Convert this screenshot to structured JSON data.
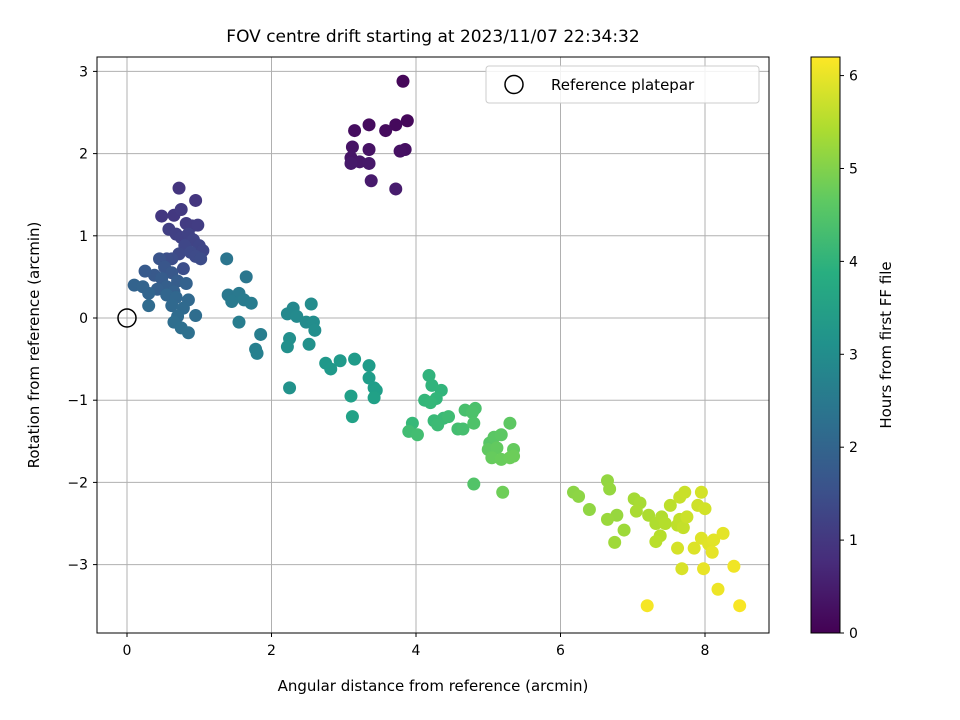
{
  "chart_data": {
    "type": "scatter",
    "title": "FOV centre drift starting at 2023/11/07 22:34:32",
    "xlabel": "Angular distance from reference (arcmin)",
    "ylabel": "Rotation from reference (arcmin)",
    "xlim": [
      -0.4,
      8.9
    ],
    "ylim": [
      -3.8,
      3.2
    ],
    "xticks": [
      0,
      2,
      4,
      6,
      8
    ],
    "yticks": [
      -3,
      -2,
      -1,
      0,
      1,
      2,
      3
    ],
    "grid": true,
    "legend": {
      "position": "top-right",
      "entries": [
        "Reference platepar"
      ]
    },
    "reference_point": {
      "x": 0,
      "y": 0,
      "label": "Reference platepar"
    },
    "colorbar": {
      "label": "Hours from first FF file",
      "range": [
        0,
        6.2
      ],
      "ticks": [
        0,
        1,
        2,
        3,
        4,
        5,
        6
      ],
      "colormap": "viridis"
    },
    "points": [
      [
        3.82,
        2.88,
        0.1
      ],
      [
        3.88,
        2.4,
        0.12
      ],
      [
        3.72,
        2.35,
        0.15
      ],
      [
        3.58,
        2.28,
        0.18
      ],
      [
        3.35,
        2.35,
        0.2
      ],
      [
        3.15,
        2.28,
        0.22
      ],
      [
        3.85,
        2.05,
        0.25
      ],
      [
        3.78,
        2.03,
        0.28
      ],
      [
        3.35,
        2.05,
        0.3
      ],
      [
        3.12,
        2.08,
        0.32
      ],
      [
        3.1,
        1.95,
        0.35
      ],
      [
        3.22,
        1.9,
        0.38
      ],
      [
        3.35,
        1.88,
        0.4
      ],
      [
        3.1,
        1.88,
        0.42
      ],
      [
        3.38,
        1.67,
        0.45
      ],
      [
        3.72,
        1.57,
        0.48
      ],
      [
        0.72,
        1.58,
        0.95
      ],
      [
        0.95,
        1.43,
        0.98
      ],
      [
        0.48,
        1.24,
        1.0
      ],
      [
        0.65,
        1.25,
        1.02
      ],
      [
        0.75,
        1.32,
        1.05
      ],
      [
        0.82,
        1.15,
        1.08
      ],
      [
        0.9,
        1.12,
        1.1
      ],
      [
        0.98,
        1.13,
        1.12
      ],
      [
        0.58,
        1.08,
        1.15
      ],
      [
        0.68,
        1.02,
        1.18
      ],
      [
        0.75,
        0.98,
        1.2
      ],
      [
        0.85,
        1.02,
        1.22
      ],
      [
        0.92,
        0.95,
        1.25
      ],
      [
        1.0,
        0.88,
        1.28
      ],
      [
        1.05,
        0.82,
        1.3
      ],
      [
        0.8,
        0.88,
        1.32
      ],
      [
        0.72,
        0.78,
        1.35
      ],
      [
        0.88,
        0.8,
        1.38
      ],
      [
        0.95,
        0.75,
        1.4
      ],
      [
        1.02,
        0.72,
        1.42
      ],
      [
        0.62,
        0.72,
        1.45
      ],
      [
        0.78,
        0.6,
        1.48
      ],
      [
        0.55,
        0.72,
        1.5
      ],
      [
        0.45,
        0.72,
        1.6
      ],
      [
        0.52,
        0.62,
        1.65
      ],
      [
        0.62,
        0.55,
        1.7
      ],
      [
        0.38,
        0.52,
        1.72
      ],
      [
        0.25,
        0.57,
        1.75
      ],
      [
        0.48,
        0.48,
        1.8
      ],
      [
        0.7,
        0.45,
        1.82
      ],
      [
        0.55,
        0.38,
        1.85
      ],
      [
        0.42,
        0.35,
        1.88
      ],
      [
        0.65,
        0.32,
        1.9
      ],
      [
        0.82,
        0.42,
        1.92
      ],
      [
        0.1,
        0.4,
        1.95
      ],
      [
        0.22,
        0.38,
        1.97
      ],
      [
        0.3,
        0.3,
        2.0
      ],
      [
        0.55,
        0.28,
        2.02
      ],
      [
        0.68,
        0.25,
        2.05
      ],
      [
        0.85,
        0.22,
        2.08
      ],
      [
        0.62,
        0.15,
        2.1
      ],
      [
        0.78,
        0.12,
        2.12
      ],
      [
        0.3,
        0.15,
        2.15
      ],
      [
        0.7,
        0.02,
        2.18
      ],
      [
        0.95,
        0.03,
        2.2
      ],
      [
        0.65,
        -0.05,
        2.22
      ],
      [
        0.75,
        -0.12,
        2.25
      ],
      [
        0.85,
        -0.18,
        2.28
      ],
      [
        1.38,
        0.72,
        2.4
      ],
      [
        1.65,
        0.5,
        2.45
      ],
      [
        1.4,
        0.28,
        2.5
      ],
      [
        1.55,
        0.3,
        2.52
      ],
      [
        1.45,
        0.2,
        2.55
      ],
      [
        1.62,
        0.22,
        2.58
      ],
      [
        1.72,
        0.18,
        2.6
      ],
      [
        1.55,
        -0.05,
        2.62
      ],
      [
        1.85,
        -0.2,
        2.65
      ],
      [
        1.78,
        -0.38,
        2.68
      ],
      [
        1.8,
        -0.43,
        2.7
      ],
      [
        2.3,
        0.12,
        2.9
      ],
      [
        2.22,
        0.05,
        2.92
      ],
      [
        2.35,
        0.02,
        2.95
      ],
      [
        2.48,
        -0.05,
        2.97
      ],
      [
        2.55,
        0.17,
        3.0
      ],
      [
        2.58,
        -0.05,
        3.02
      ],
      [
        2.6,
        -0.15,
        3.05
      ],
      [
        2.25,
        -0.25,
        3.08
      ],
      [
        2.22,
        -0.35,
        3.1
      ],
      [
        2.52,
        -0.32,
        3.12
      ],
      [
        2.25,
        -0.85,
        3.15
      ],
      [
        2.75,
        -0.55,
        3.3
      ],
      [
        2.82,
        -0.62,
        3.32
      ],
      [
        2.95,
        -0.52,
        3.35
      ],
      [
        3.15,
        -0.5,
        3.38
      ],
      [
        3.35,
        -0.58,
        3.4
      ],
      [
        3.35,
        -0.73,
        3.42
      ],
      [
        3.42,
        -0.85,
        3.45
      ],
      [
        3.45,
        -0.88,
        3.48
      ],
      [
        3.1,
        -0.95,
        3.5
      ],
      [
        3.42,
        -0.97,
        3.52
      ],
      [
        3.12,
        -1.2,
        3.55
      ],
      [
        4.18,
        -0.7,
        4.0
      ],
      [
        4.22,
        -0.82,
        4.02
      ],
      [
        4.35,
        -0.88,
        4.05
      ],
      [
        4.28,
        -0.98,
        4.08
      ],
      [
        4.12,
        -1.0,
        4.1
      ],
      [
        4.2,
        -1.03,
        4.12
      ],
      [
        3.95,
        -1.28,
        4.15
      ],
      [
        4.25,
        -1.25,
        4.18
      ],
      [
        4.38,
        -1.22,
        4.2
      ],
      [
        4.3,
        -1.3,
        4.22
      ],
      [
        4.45,
        -1.2,
        4.25
      ],
      [
        3.9,
        -1.38,
        4.28
      ],
      [
        4.02,
        -1.42,
        4.3
      ],
      [
        4.58,
        -1.35,
        4.32
      ],
      [
        4.65,
        -1.35,
        4.35
      ],
      [
        4.68,
        -1.12,
        4.38
      ],
      [
        4.82,
        -1.1,
        4.4
      ],
      [
        4.78,
        -1.15,
        4.42
      ],
      [
        4.8,
        -1.28,
        4.45
      ],
      [
        4.8,
        -2.02,
        4.48
      ],
      [
        5.02,
        -1.52,
        4.55
      ],
      [
        5.08,
        -1.45,
        4.58
      ],
      [
        5.18,
        -1.42,
        4.6
      ],
      [
        5.3,
        -1.28,
        4.62
      ],
      [
        5.0,
        -1.6,
        4.65
      ],
      [
        5.12,
        -1.58,
        4.68
      ],
      [
        5.35,
        -1.6,
        4.7
      ],
      [
        5.05,
        -1.7,
        4.72
      ],
      [
        5.18,
        -1.72,
        4.75
      ],
      [
        5.3,
        -1.7,
        4.78
      ],
      [
        5.35,
        -1.68,
        4.8
      ],
      [
        5.2,
        -2.12,
        4.82
      ],
      [
        6.18,
        -2.12,
        5.1
      ],
      [
        6.25,
        -2.17,
        5.12
      ],
      [
        6.4,
        -2.33,
        5.15
      ],
      [
        6.65,
        -1.98,
        5.18
      ],
      [
        6.68,
        -2.08,
        5.2
      ],
      [
        6.78,
        -2.4,
        5.22
      ],
      [
        6.65,
        -2.45,
        5.25
      ],
      [
        6.88,
        -2.58,
        5.28
      ],
      [
        6.75,
        -2.73,
        5.3
      ],
      [
        7.02,
        -2.2,
        5.35
      ],
      [
        7.1,
        -2.25,
        5.38
      ],
      [
        7.05,
        -2.35,
        5.4
      ],
      [
        7.22,
        -2.4,
        5.42
      ],
      [
        7.32,
        -2.5,
        5.45
      ],
      [
        7.4,
        -2.42,
        5.48
      ],
      [
        7.45,
        -2.5,
        5.5
      ],
      [
        7.38,
        -2.65,
        5.52
      ],
      [
        7.32,
        -2.72,
        5.55
      ],
      [
        7.52,
        -2.28,
        5.58
      ],
      [
        7.62,
        -2.52,
        5.6
      ],
      [
        7.65,
        -2.45,
        5.62
      ],
      [
        7.7,
        -2.55,
        5.65
      ],
      [
        7.65,
        -2.18,
        5.68
      ],
      [
        7.72,
        -2.12,
        5.7
      ],
      [
        7.75,
        -2.42,
        5.72
      ],
      [
        7.9,
        -2.28,
        5.75
      ],
      [
        8.0,
        -2.32,
        5.78
      ],
      [
        7.95,
        -2.12,
        5.8
      ],
      [
        7.62,
        -2.8,
        5.82
      ],
      [
        7.68,
        -3.05,
        5.85
      ],
      [
        7.85,
        -2.8,
        5.88
      ],
      [
        7.95,
        -2.68,
        5.9
      ],
      [
        8.05,
        -2.75,
        5.92
      ],
      [
        8.12,
        -2.7,
        5.94
      ],
      [
        8.25,
        -2.62,
        5.96
      ],
      [
        8.1,
        -2.85,
        5.98
      ],
      [
        7.98,
        -3.05,
        6.0
      ],
      [
        8.18,
        -3.3,
        6.05
      ],
      [
        8.4,
        -3.02,
        6.08
      ],
      [
        7.2,
        -3.5,
        6.12
      ],
      [
        8.48,
        -3.5,
        6.15
      ]
    ]
  }
}
